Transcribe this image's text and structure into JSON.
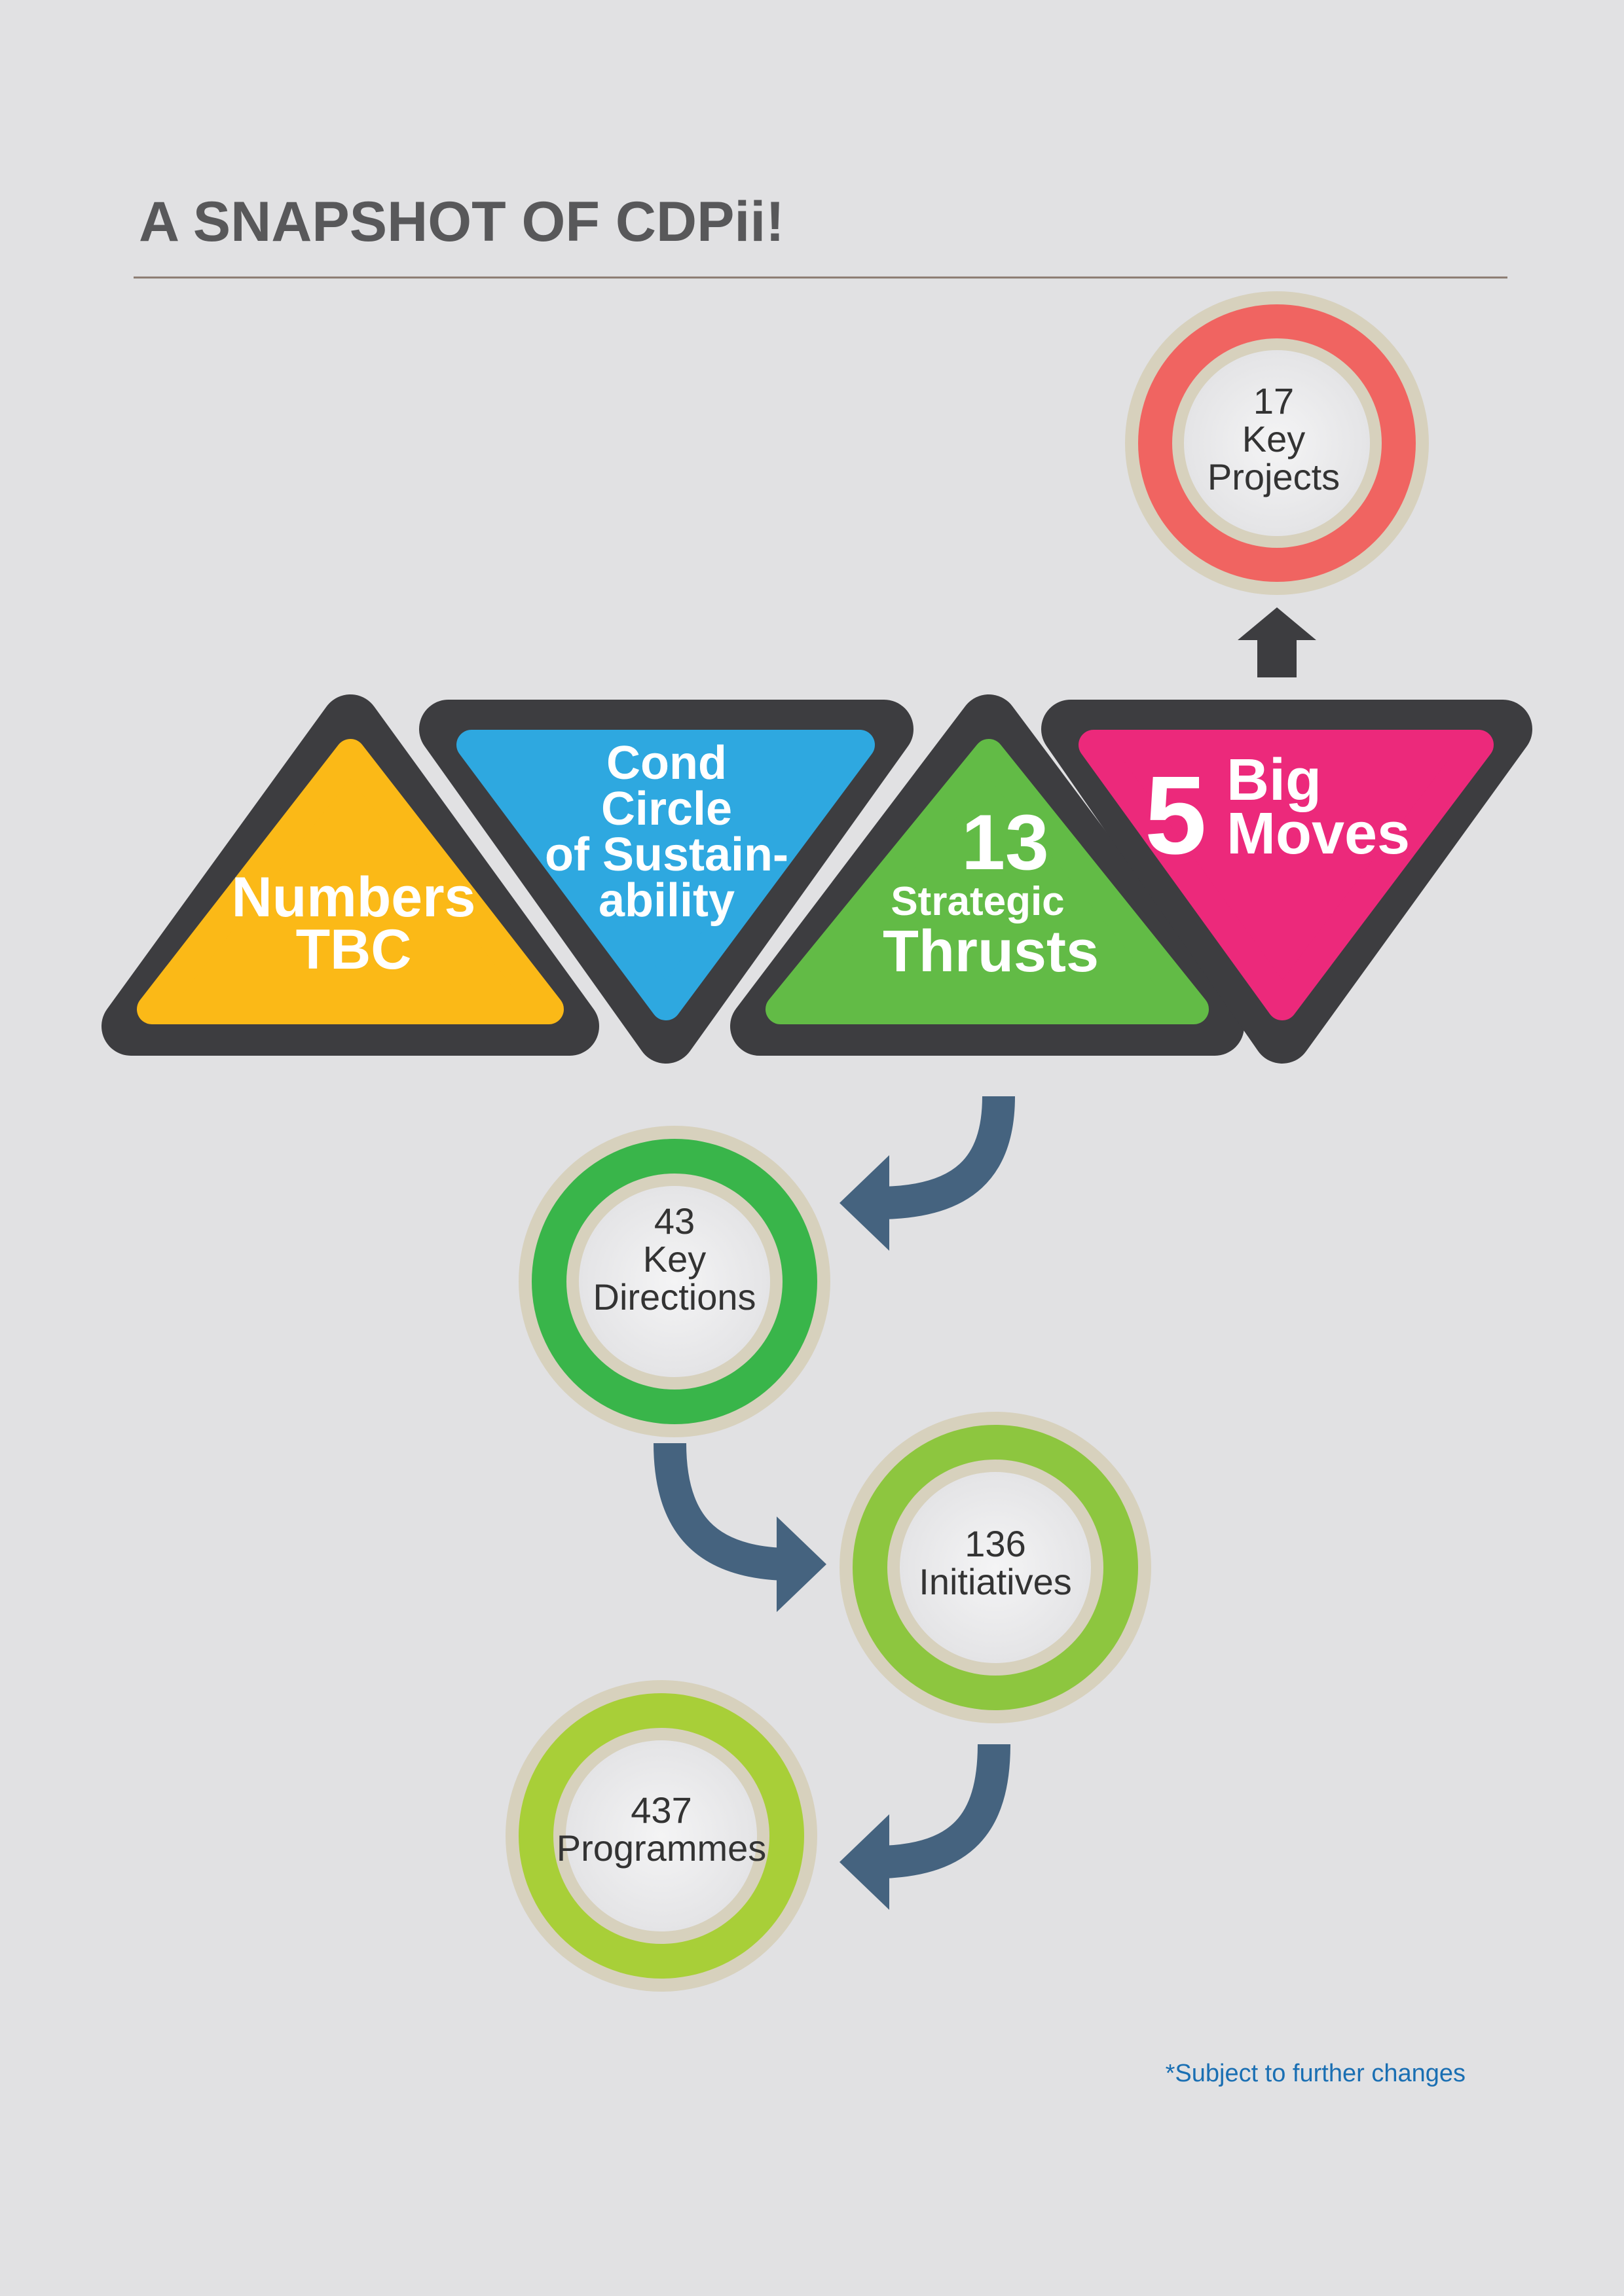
{
  "title": "A SNAPSHOT OF CDPii!",
  "colors": {
    "background": "#e1e1e3",
    "frame": "#3d3d40",
    "triangle_yellow": "#fbb917",
    "triangle_blue": "#2ea8e0",
    "triangle_green": "#62bb46",
    "triangle_pink": "#ec297b",
    "ring_red": "#f06461",
    "ring_green": "#39b54a",
    "ring_lime": "#8dc63f",
    "ring_yellowgreen": "#a8cf38",
    "ring_border": "#d7d1bd",
    "arrow": "#45637f",
    "note": "#1a6fb3"
  },
  "triangles": {
    "numbers": {
      "line1": "Numbers",
      "line2": "TBC"
    },
    "sustainability": {
      "line1": "Cond",
      "line2": "Circle",
      "line3": "of Sustain-",
      "line4": "ability"
    },
    "thrusts": {
      "number": "13",
      "line1": "Strategic",
      "line2": "Thrusts"
    },
    "big_moves": {
      "number": "5",
      "line1": "Big",
      "line2": "Moves"
    }
  },
  "circles": {
    "key_projects": {
      "number": "17",
      "line1": "Key",
      "line2": "Projects"
    },
    "key_directions": {
      "number": "43",
      "line1": "Key",
      "line2": "Directions"
    },
    "initiatives": {
      "number": "136",
      "line1": "Initiatives"
    },
    "programmes": {
      "number": "437",
      "line1": "Programmes"
    }
  },
  "footnote": "*Subject to further changes"
}
